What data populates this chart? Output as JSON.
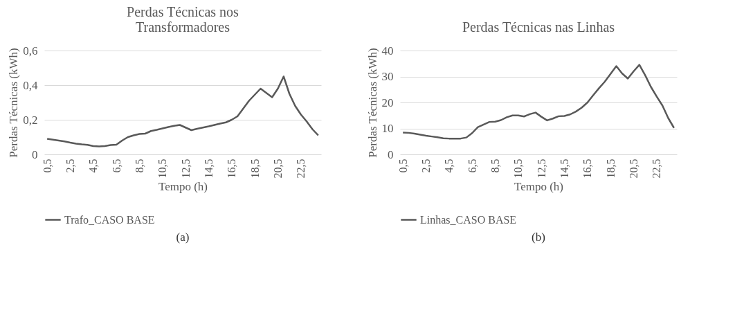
{
  "chart_data": [
    {
      "type": "line",
      "title": "Perdas Técnicas nos Transformadores",
      "xlabel": "Tempo (h)",
      "ylabel": "Perdas Técnicas (kWh)",
      "categories": [
        "0,5",
        null,
        null,
        null,
        "2,5",
        null,
        null,
        null,
        "4,5",
        null,
        null,
        null,
        "6,5",
        null,
        null,
        null,
        "8,5",
        null,
        null,
        null,
        "10,5",
        null,
        null,
        null,
        "12,5",
        null,
        null,
        null,
        "14,5",
        null,
        null,
        null,
        "16,5",
        null,
        null,
        null,
        "18,5",
        null,
        null,
        null,
        "20,5",
        null,
        null,
        null,
        "22,5",
        null,
        null,
        null
      ],
      "series": [
        {
          "name": "Trafo_CASO BASE",
          "color": "#595959",
          "values": [
            0.09,
            0.085,
            0.08,
            0.075,
            0.068,
            0.062,
            0.058,
            0.055,
            0.048,
            0.046,
            0.048,
            0.054,
            0.056,
            0.08,
            0.1,
            0.11,
            0.118,
            0.12,
            0.135,
            0.142,
            0.15,
            0.158,
            0.165,
            0.17,
            0.155,
            0.14,
            0.148,
            0.155,
            0.162,
            0.17,
            0.178,
            0.185,
            0.2,
            0.22,
            0.265,
            0.31,
            0.345,
            0.38,
            0.355,
            0.33,
            0.38,
            0.45,
            0.35,
            0.28,
            0.23,
            0.19,
            0.145,
            0.11
          ]
        }
      ],
      "ylim": [
        0,
        0.6
      ],
      "yticks": [
        0,
        {
          "value": 0.2,
          "label": "0,2"
        },
        {
          "value": 0.4,
          "label": "0,4"
        },
        {
          "value": 0.6,
          "label": "0,6"
        }
      ],
      "grid": "y",
      "legend": "bottom",
      "annotations": [
        "(a)"
      ]
    },
    {
      "type": "line",
      "title": "Perdas Técnicas nas Linhas",
      "xlabel": "Tempo (h)",
      "ylabel": "Perdas Técnicas (kWh)",
      "categories": [
        "0,5",
        null,
        null,
        null,
        "2,5",
        null,
        null,
        null,
        "4,5",
        null,
        null,
        null,
        "6,5",
        null,
        null,
        null,
        "8,5",
        null,
        null,
        null,
        "10,5",
        null,
        null,
        null,
        "12,5",
        null,
        null,
        null,
        "14,5",
        null,
        null,
        null,
        "16,5",
        null,
        null,
        null,
        "18,5",
        null,
        null,
        null,
        "20,5",
        null,
        null,
        null,
        "22,5",
        null,
        null,
        null
      ],
      "series": [
        {
          "name": "Linhas_CASO BASE",
          "color": "#595959",
          "values": [
            8.4,
            8.3,
            8,
            7.6,
            7.2,
            6.9,
            6.6,
            6.2,
            6.1,
            6.1,
            6.1,
            6.5,
            8.2,
            10.5,
            11.5,
            12.5,
            12.6,
            13.2,
            14.3,
            15,
            15,
            14.6,
            15.5,
            16.1,
            14.5,
            13.1,
            13.8,
            14.7,
            14.8,
            15.4,
            16.5,
            18,
            20,
            22.8,
            25.5,
            28,
            31,
            34,
            31.2,
            29.2,
            32,
            34.5,
            30.5,
            26,
            22.3,
            18.8,
            14,
            10.2
          ]
        }
      ],
      "ylim": [
        0,
        40
      ],
      "yticks": [
        0,
        10,
        20,
        30,
        40
      ],
      "grid": "y",
      "legend": "bottom",
      "annotations": [
        "(b)"
      ]
    }
  ]
}
